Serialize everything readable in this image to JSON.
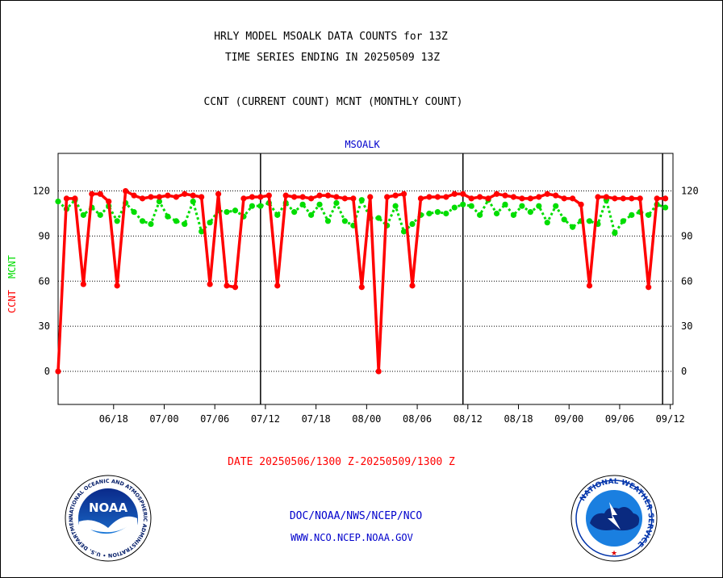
{
  "header": {
    "title_line1": "HRLY MODEL MSOALK DATA COUNTS for 13Z",
    "title_line2": "TIME SERIES ENDING IN 20250509 13Z",
    "subtitle": "CCNT (CURRENT COUNT) MCNT (MONTHLY COUNT)"
  },
  "footer": {
    "date_range": "DATE 20250506/1300 Z-20250509/1300 Z",
    "org_line": "DOC/NOAA/NWS/NCEP/NCO",
    "url_line": "WWW.NCO.NCEP.NOAA.GOV"
  },
  "logos": {
    "noaa_text": "NOAA",
    "noaa_ring_text": "NATIONAL OCEANIC AND ATMOSPHERIC ADMINISTRATION • U.S. DEPARTMENT OF COMMERCE",
    "nws_ring_text": "NATIONAL WEATHER SERVICE"
  },
  "colors": {
    "ccnt": "#ff0000",
    "mcnt": "#00dd00",
    "station": "#0000cc",
    "footer_blue": "#0000cc"
  },
  "chart_data": {
    "type": "line",
    "station_label": "MSOALK",
    "ylabel_ccnt": "CCNT",
    "ylabel_mcnt": "MCNT",
    "ylim": [
      -22,
      145
    ],
    "yticks": [
      0,
      30,
      60,
      90,
      120
    ],
    "ytick_labels": [
      "0",
      "30",
      "60",
      "90",
      "120"
    ],
    "grid": "dotted-horizontal",
    "xticks": [
      {
        "day": 6.58,
        "label": "06/18"
      },
      {
        "day": 12.58,
        "label": "07/00"
      },
      {
        "day": 18.58,
        "label": "07/06"
      },
      {
        "day": 24.58,
        "label": "07/12"
      },
      {
        "day": 30.58,
        "label": "07/18"
      },
      {
        "day": 36.58,
        "label": "08/00"
      },
      {
        "day": 42.58,
        "label": "08/06"
      },
      {
        "day": 48.58,
        "label": "08/12"
      },
      {
        "day": 54.58,
        "label": "08/18"
      },
      {
        "day": 60.58,
        "label": "09/00"
      },
      {
        "day": 66.58,
        "label": "09/06"
      },
      {
        "day": 72.58,
        "label": "09/12"
      }
    ],
    "xlim": [
      0.0,
      72.9
    ],
    "day_boundaries": [
      24.0,
      48.0,
      71.67
    ],
    "series": [
      {
        "name": "CCNT",
        "x": [
          0,
          1,
          2,
          3,
          4,
          5,
          6,
          7,
          8,
          9,
          10,
          11,
          12,
          13,
          14,
          15,
          16,
          17,
          18,
          19,
          20,
          21,
          22,
          23,
          24,
          25,
          26,
          27,
          28,
          29,
          30,
          31,
          32,
          33,
          34,
          35,
          36,
          37,
          38,
          39,
          40,
          41,
          42,
          43,
          44,
          45,
          46,
          47,
          48,
          49,
          50,
          51,
          52,
          53,
          54,
          55,
          56,
          57,
          58,
          59,
          60,
          61,
          62,
          63,
          64,
          65,
          66,
          67,
          68,
          69,
          70,
          71,
          72
        ],
        "values": [
          0,
          115,
          115,
          58,
          118,
          118,
          113,
          57,
          120,
          117,
          115,
          116,
          116,
          117,
          116,
          118,
          117,
          116,
          58,
          118,
          57,
          56,
          115,
          116,
          116,
          117,
          57,
          117,
          116,
          116,
          115,
          117,
          117,
          116,
          115,
          115,
          56,
          116,
          0,
          116,
          117,
          118,
          57,
          115,
          116,
          116,
          116,
          118,
          118,
          115,
          116,
          115,
          118,
          117,
          116,
          115,
          115,
          116,
          118,
          117,
          115,
          115,
          111,
          57,
          116,
          116,
          115,
          115,
          115,
          115,
          56,
          115,
          115
        ]
      },
      {
        "name": "MCNT",
        "x": [
          0,
          1,
          2,
          3,
          4,
          5,
          6,
          7,
          8,
          9,
          10,
          11,
          12,
          13,
          14,
          15,
          16,
          17,
          18,
          19,
          20,
          21,
          22,
          23,
          24,
          25,
          26,
          27,
          28,
          29,
          30,
          31,
          32,
          33,
          34,
          35,
          36,
          37,
          38,
          39,
          40,
          41,
          42,
          43,
          44,
          45,
          46,
          47,
          48,
          49,
          50,
          51,
          52,
          53,
          54,
          55,
          56,
          57,
          58,
          59,
          60,
          61,
          62,
          63,
          64,
          65,
          66,
          67,
          68,
          69,
          70,
          71,
          72
        ],
        "values": [
          113,
          108,
          114,
          104,
          109,
          104,
          110,
          100,
          112,
          106,
          100,
          98,
          113,
          103,
          100,
          98,
          113,
          93,
          99,
          107,
          106,
          107,
          103,
          110,
          110,
          112,
          104,
          112,
          106,
          111,
          104,
          111,
          100,
          112,
          100,
          97,
          114,
          102,
          102,
          97,
          110,
          93,
          98,
          104,
          105,
          106,
          105,
          109,
          111,
          110,
          104,
          114,
          105,
          111,
          104,
          110,
          106,
          110,
          99,
          110,
          101,
          96,
          100,
          100,
          98,
          114,
          92,
          100,
          104,
          106,
          104,
          111,
          109
        ]
      }
    ]
  }
}
